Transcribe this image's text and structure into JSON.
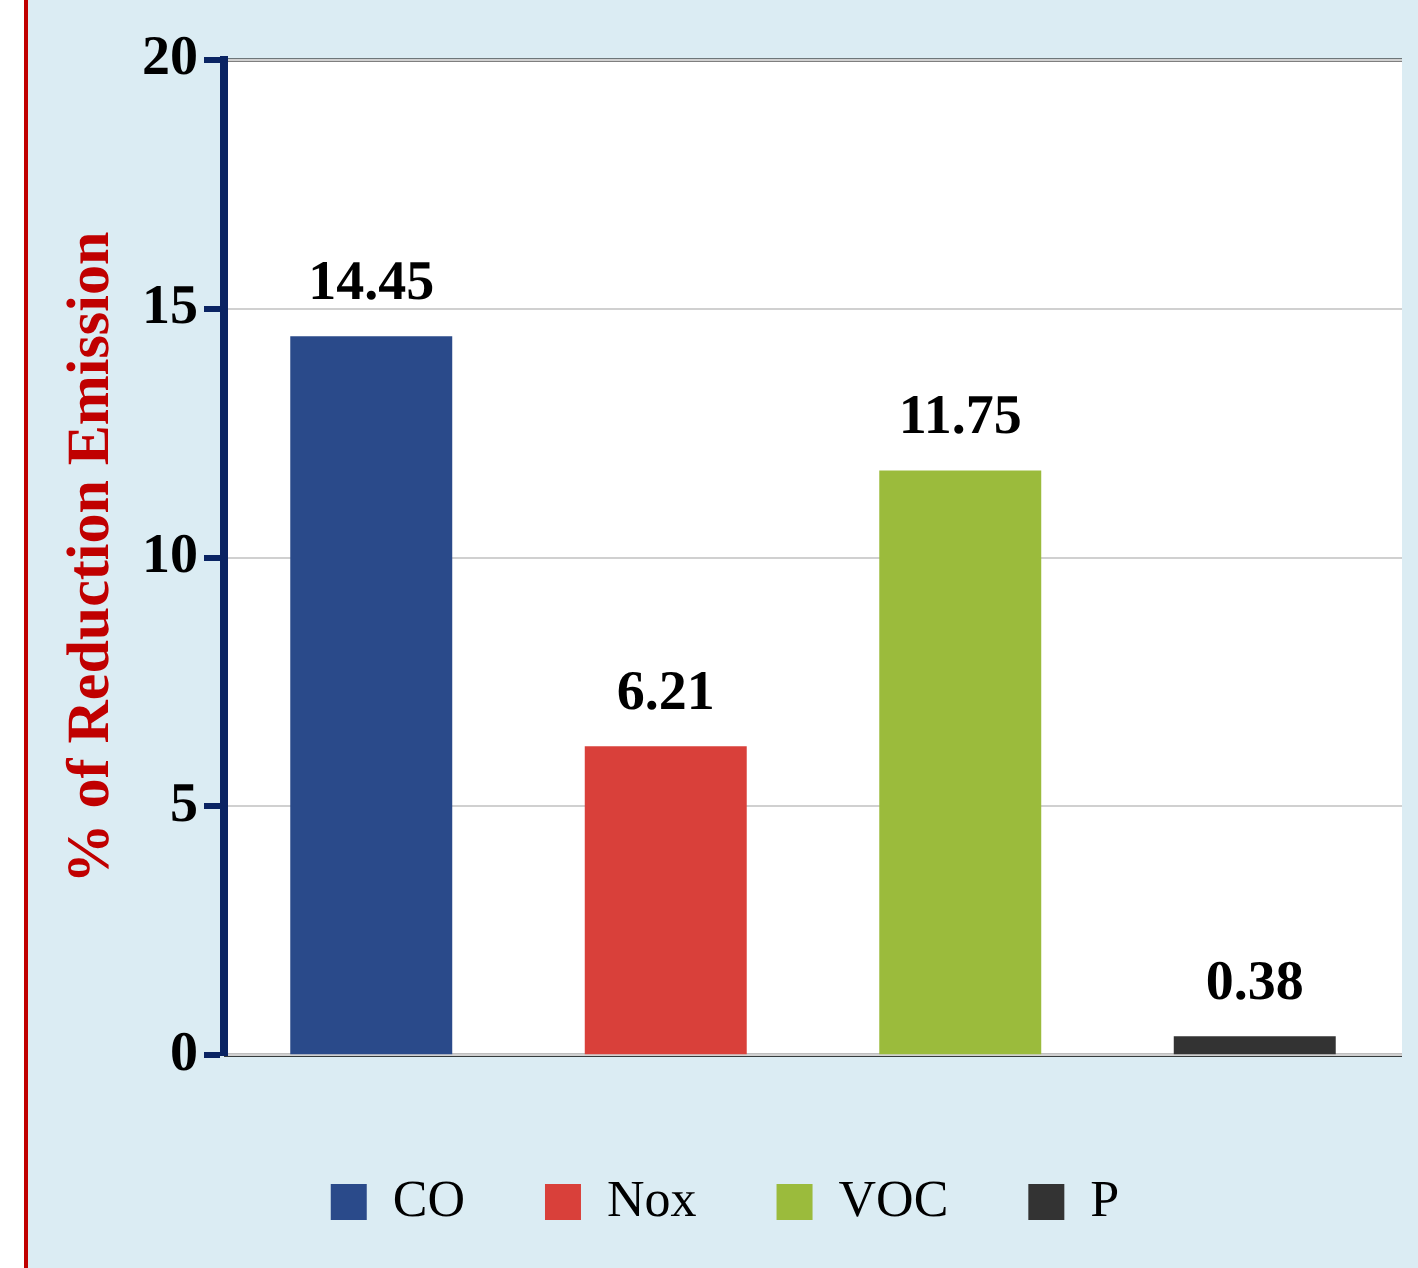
{
  "chart_data": {
    "type": "bar",
    "ylabel": "% of Reduction Emission",
    "categories": [
      null,
      null,
      null,
      null
    ],
    "series": [
      {
        "name": "CO",
        "color": "#2a4a8a",
        "values": [
          14.45,
          null,
          null,
          null
        ]
      },
      {
        "name": "Nox",
        "color": "#d9403a",
        "values": [
          null,
          6.21,
          null,
          null
        ]
      },
      {
        "name": "VOC",
        "color": "#9bbb3c",
        "values": [
          null,
          null,
          11.75,
          null
        ]
      },
      {
        "name": "P",
        "color": "#333333",
        "values": [
          null,
          null,
          null,
          0.38
        ]
      }
    ],
    "ylim": [
      0,
      20
    ],
    "yticks": [
      0,
      5,
      10,
      15,
      20
    ],
    "grid": "y",
    "legend": "bottom",
    "data_labels": true
  }
}
